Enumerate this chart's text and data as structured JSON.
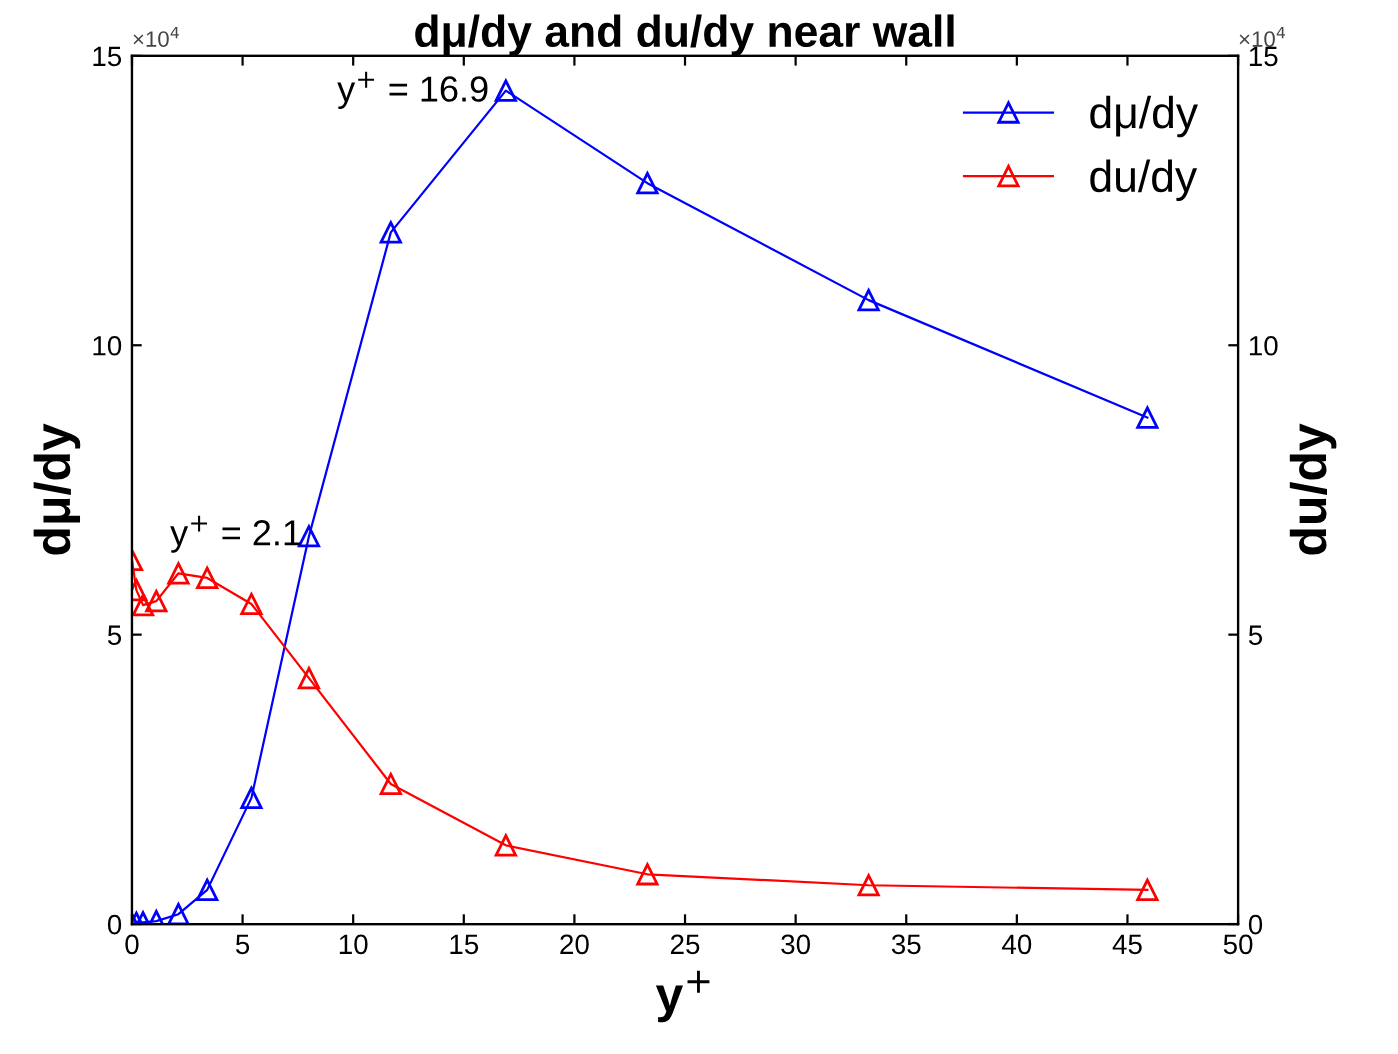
{
  "chart_data": {
    "type": "line",
    "title": "dμ/dy and du/dy near wall",
    "xlabel": "y$^{+}$",
    "ylabel": "dμ/dy",
    "y2label": "du/dy",
    "series": [
      {
        "name": "dμ/dy",
        "color": "#0000ff",
        "x": [
          0,
          0.2,
          0.5,
          1.1,
          2.1,
          3.4,
          5.4,
          8.0,
          11.7,
          16.9,
          23.3,
          33.3,
          45.9
        ],
        "values": [
          0,
          0.02,
          0.03,
          0.05,
          0.17,
          0.59,
          2.18,
          6.7,
          11.95,
          14.4,
          12.8,
          10.78,
          8.75
        ]
      },
      {
        "name": "du/dy",
        "color": "#ff0000",
        "axis": "y2",
        "x": [
          0,
          0.2,
          0.5,
          1.1,
          2.1,
          3.4,
          5.4,
          8.0,
          11.7,
          16.9,
          23.3,
          33.3,
          45.9
        ],
        "values": [
          6.29,
          5.77,
          5.51,
          5.58,
          6.06,
          5.98,
          5.53,
          4.25,
          2.42,
          1.36,
          0.86,
          0.67,
          0.59
        ]
      }
    ],
    "xlim": [
      0,
      50
    ],
    "xticks": [
      0,
      5,
      10,
      15,
      20,
      25,
      30,
      35,
      40,
      45,
      50
    ],
    "ylim": [
      0,
      15
    ],
    "yticks": [
      0,
      5,
      10,
      15
    ],
    "y2lim": [
      0,
      15
    ],
    "y2ticks": [
      0,
      5,
      10,
      15
    ],
    "marker": "triangle",
    "line_style": "solid",
    "legend": "top right",
    "grid": false,
    "annotations": [
      {
        "text": "y$^{+}$ = 16.9",
        "x": 16.9,
        "y": 14.4
      },
      {
        "text": "y$^{+}$ = 2.1",
        "x": 2.1,
        "y": 6.06
      },
      "×10$^{4}$",
      "×10$^{4}$"
    ]
  }
}
